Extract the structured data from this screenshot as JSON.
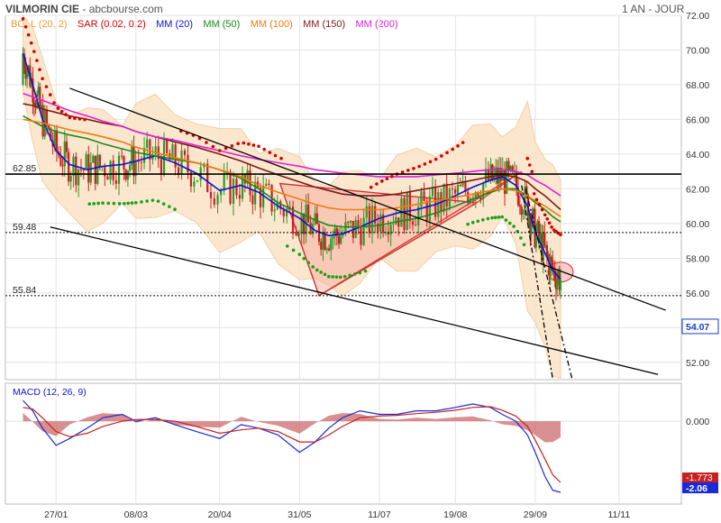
{
  "header": {
    "symbol": "VILMORIN CIE",
    "source": "abcbourse.com",
    "period": "1 AN - JOUR"
  },
  "indicators": [
    {
      "label": "BOLL (20, 2)",
      "color": "#f29a3c"
    },
    {
      "label": "SAR (0.02, 0.2)",
      "color": "#d40000"
    },
    {
      "label": "MM (20)",
      "color": "#0a14d8"
    },
    {
      "label": "MM (50)",
      "color": "#1a8a1a"
    },
    {
      "label": "MM (100)",
      "color": "#f07a10"
    },
    {
      "label": "MM (150)",
      "color": "#7a1a1a"
    },
    {
      "label": "MM (200)",
      "color": "#e020d8"
    }
  ],
  "levels": [
    {
      "label": "62.85",
      "value": 62.85,
      "style": "solid"
    },
    {
      "label": "59.48",
      "value": 59.48,
      "style": "dotted"
    },
    {
      "label": "55.84",
      "value": 55.84,
      "style": "dotted"
    }
  ],
  "chart_data": [
    {
      "type": "line",
      "name": "price",
      "y_ticks": [
        "72.00",
        "70.00",
        "68.00",
        "66.00",
        "64.00",
        "62.00",
        "60.00",
        "58.00",
        "56.00",
        "54.00",
        "52.00"
      ],
      "ylim": [
        51,
        72
      ],
      "x_ticks": [
        "27/01",
        "08/03",
        "20/04",
        "31/05",
        "11/07",
        "19/08",
        "29/09",
        "11/11"
      ],
      "last_price": "54.07",
      "x": [
        "2024-01-10",
        "2024-01-15",
        "2024-01-20",
        "2024-01-27",
        "2024-02-03",
        "2024-02-12",
        "2024-02-20",
        "2024-03-01",
        "2024-03-08",
        "2024-03-18",
        "2024-03-28",
        "2024-04-08",
        "2024-04-20",
        "2024-05-01",
        "2024-05-10",
        "2024-05-20",
        "2024-05-31",
        "2024-06-08",
        "2024-06-15",
        "2024-06-22",
        "2024-07-01",
        "2024-07-11",
        "2024-07-20",
        "2024-07-30",
        "2024-08-09",
        "2024-08-19",
        "2024-08-28",
        "2024-09-06",
        "2024-09-12",
        "2024-09-19",
        "2024-09-25",
        "2024-09-29",
        "2024-10-04",
        "2024-10-08",
        "2024-10-12"
      ],
      "series": [
        {
          "name": "MM (20)",
          "values": [
            69.8,
            68.0,
            66.0,
            64.2,
            63.4,
            63.1,
            63.3,
            63.4,
            63.6,
            63.9,
            63.5,
            62.9,
            61.9,
            62.2,
            61.8,
            61.0,
            60.3,
            59.6,
            59.3,
            59.4,
            59.8,
            60.3,
            60.6,
            60.8,
            61.1,
            61.6,
            62.1,
            62.5,
            62.7,
            62.2,
            61.0,
            59.5,
            58.3,
            57.3,
            56.8
          ]
        },
        {
          "name": "MM (50)",
          "values": [
            66.2,
            65.9,
            65.6,
            65.3,
            65.1,
            64.9,
            64.6,
            64.3,
            64.1,
            63.9,
            63.7,
            63.5,
            63.1,
            62.6,
            62.0,
            61.2,
            60.6,
            60.2,
            59.9,
            59.8,
            59.8,
            59.9,
            60.1,
            60.3,
            60.6,
            61.0,
            61.4,
            61.8,
            62.0,
            62.0,
            61.6,
            61.2,
            60.8,
            60.4,
            60.1
          ]
        },
        {
          "name": "MM (100)",
          "values": [
            66.0,
            65.9,
            65.8,
            65.6,
            65.4,
            65.2,
            65.0,
            64.7,
            64.4,
            64.1,
            63.8,
            63.5,
            63.1,
            62.7,
            62.2,
            61.8,
            61.4,
            61.1,
            60.9,
            60.8,
            60.8,
            60.8,
            60.9,
            61.1,
            61.3,
            61.5,
            61.7,
            61.9,
            62.0,
            61.9,
            61.6,
            61.3,
            61.0,
            60.7,
            60.4
          ]
        },
        {
          "name": "MM (150)",
          "values": [
            66.9,
            66.8,
            66.6,
            66.4,
            66.2,
            66.0,
            65.8,
            65.6,
            65.3,
            65.0,
            64.7,
            64.4,
            64.0,
            63.6,
            63.2,
            62.8,
            62.4,
            62.1,
            61.9,
            61.7,
            61.6,
            61.6,
            61.7,
            61.9,
            62.1,
            62.3,
            62.5,
            62.7,
            62.8,
            62.7,
            62.4,
            62.0,
            61.6,
            61.2,
            60.8
          ]
        },
        {
          "name": "MM (200)",
          "values": [
            67.5,
            67.3,
            67.1,
            66.8,
            66.5,
            66.2,
            65.9,
            65.6,
            65.3,
            65.0,
            64.8,
            64.5,
            64.2,
            63.9,
            63.7,
            63.5,
            63.3,
            63.1,
            63.0,
            62.9,
            62.8,
            62.7,
            62.7,
            62.7,
            62.8,
            62.9,
            63.0,
            63.1,
            63.1,
            63.0,
            62.8,
            62.5,
            62.2,
            61.9,
            61.6
          ]
        }
      ]
    },
    {
      "type": "line",
      "name": "MACD (12, 26, 9)",
      "y_ticks": [
        "0.000"
      ],
      "ylim": [
        -2.4,
        1.1
      ],
      "last_values": [
        "-1.773",
        "-2.06"
      ],
      "series": [
        {
          "name": "MACD",
          "values": [
            0.6,
            0.3,
            -0.2,
            -0.7,
            -0.5,
            -0.2,
            0.1,
            0.2,
            0.0,
            0.1,
            -0.1,
            -0.3,
            -0.5,
            -0.1,
            -0.2,
            -0.4,
            -0.9,
            -0.6,
            -0.2,
            0.1,
            0.3,
            0.2,
            0.2,
            0.3,
            0.3,
            0.4,
            0.5,
            0.4,
            0.2,
            0.0,
            -0.4,
            -0.9,
            -1.6,
            -2.0,
            -2.06
          ]
        },
        {
          "name": "Signal",
          "values": [
            0.4,
            0.35,
            0.1,
            -0.3,
            -0.45,
            -0.35,
            -0.15,
            0.0,
            0.05,
            0.05,
            0.0,
            -0.15,
            -0.35,
            -0.25,
            -0.2,
            -0.3,
            -0.6,
            -0.6,
            -0.4,
            -0.15,
            0.1,
            0.15,
            0.17,
            0.22,
            0.26,
            0.32,
            0.4,
            0.42,
            0.32,
            0.15,
            -0.15,
            -0.55,
            -1.1,
            -1.55,
            -1.773
          ]
        }
      ]
    }
  ]
}
